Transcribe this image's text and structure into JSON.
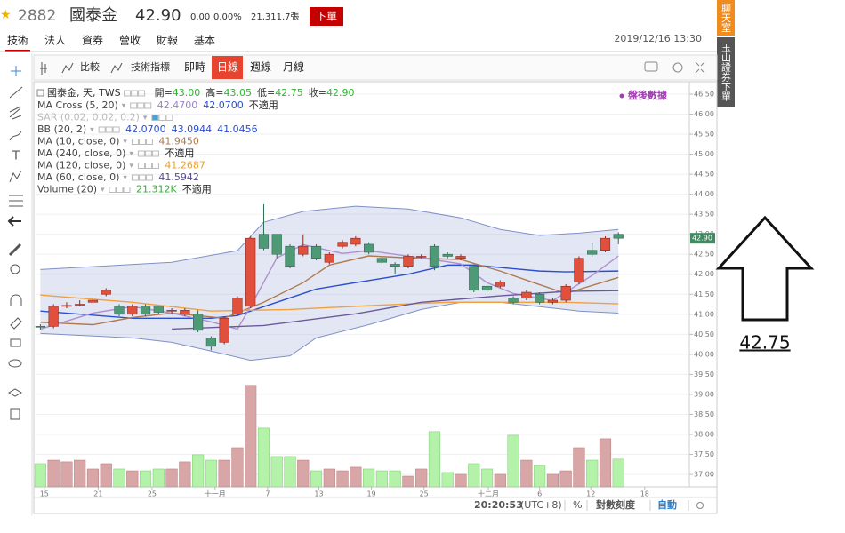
{
  "header": {
    "symbol": "2882",
    "name": "國泰金",
    "price": "42.90",
    "change": "0.00",
    "change_pct": "0.00%",
    "volume": "21,311.7張",
    "order_button": "下單"
  },
  "tabs": [
    "技術",
    "法人",
    "資券",
    "營收",
    "財報",
    "基本"
  ],
  "datetime": "2019/12/16 13:30",
  "side_tabs": [
    "聊天室",
    "玉山證券下單"
  ],
  "toolbar": {
    "compare": "比較",
    "indicators": "技術指標",
    "periods": [
      "即時",
      "日線",
      "週線",
      "月線"
    ],
    "active_period": 1
  },
  "legend": {
    "title": "國泰金, 天, TWS",
    "ohlc": [
      {
        "label": "開=",
        "value": "43.00"
      },
      {
        "label": "高=",
        "value": "43.05"
      },
      {
        "label": "低=",
        "value": "42.75"
      },
      {
        "label": "收=",
        "value": "42.90"
      }
    ]
  },
  "indicators": [
    {
      "label": "MA Cross (5, 20)",
      "values": [
        "42.4700",
        "42.0700",
        "不適用"
      ],
      "colors": [
        "#9a84c4",
        "#2a4fcf",
        "#222"
      ]
    },
    {
      "label": "SAR (0.02, 0.02, 0.2)",
      "values": [],
      "colors": []
    },
    {
      "label": "BB (20, 2)",
      "values": [
        "42.0700",
        "43.0944",
        "41.0456"
      ],
      "colors": [
        "#2a4fcf",
        "#2a4fcf",
        "#2a4fcf"
      ]
    },
    {
      "label": "MA (10, close, 0)",
      "values": [
        "41.9450"
      ],
      "colors": [
        "#b07a50"
      ]
    },
    {
      "label": "MA (240, close, 0)",
      "values": [
        "不適用"
      ],
      "colors": [
        "#222"
      ]
    },
    {
      "label": "MA (120, close, 0)",
      "values": [
        "41.2687"
      ],
      "colors": [
        "#e8a030"
      ]
    },
    {
      "label": "MA (60, close, 0)",
      "values": [
        "41.5942"
      ],
      "colors": [
        "#5a4a8a"
      ]
    },
    {
      "label": "Volume (20)",
      "values": [
        "21.312K",
        "不適用"
      ],
      "colors": [
        "#2db82d",
        "#222"
      ]
    }
  ],
  "after_hours": "盤後數據",
  "status": {
    "time": "20:20:53",
    "tz": "(UTC+8)",
    "percent": "%",
    "log": "對數刻度",
    "auto": "自動"
  },
  "annotation": "42.75",
  "chart_data": {
    "type": "candlestick",
    "open": [
      40.7,
      40.7,
      41.2,
      41.25,
      41.3,
      41.5,
      41.2,
      41.0,
      41.2,
      41.2,
      41.1,
      41.0,
      41.0,
      40.4,
      40.3,
      41.0,
      41.2,
      43.0,
      43.0,
      42.7,
      42.5,
      42.7,
      42.3,
      42.7,
      42.75,
      42.75,
      42.4,
      42.25,
      42.2,
      42.45,
      42.7,
      42.5,
      42.4,
      42.2,
      41.7,
      41.7,
      41.4,
      41.4,
      41.5,
      41.3,
      41.35,
      41.8,
      42.6,
      42.6,
      43.0
    ],
    "high": [
      40.75,
      41.25,
      41.3,
      41.35,
      41.4,
      41.65,
      41.25,
      41.25,
      41.25,
      41.2,
      41.15,
      41.15,
      41.1,
      40.45,
      40.95,
      41.45,
      42.95,
      43.75,
      43.0,
      42.75,
      43.0,
      42.75,
      42.55,
      42.85,
      42.95,
      42.8,
      42.45,
      42.3,
      42.5,
      42.5,
      42.75,
      42.55,
      42.5,
      42.25,
      41.75,
      41.85,
      41.45,
      41.6,
      41.55,
      41.4,
      41.75,
      42.45,
      42.8,
      42.95,
      43.05
    ],
    "low": [
      40.62,
      40.65,
      41.15,
      41.2,
      41.25,
      41.45,
      40.95,
      40.95,
      40.95,
      41.0,
      41.0,
      40.95,
      40.55,
      40.1,
      40.25,
      40.95,
      41.15,
      42.6,
      42.4,
      42.15,
      42.45,
      42.35,
      42.25,
      42.65,
      42.7,
      42.5,
      42.25,
      42.0,
      42.15,
      42.4,
      42.1,
      42.4,
      42.35,
      41.55,
      41.55,
      41.65,
      41.25,
      41.35,
      41.25,
      41.25,
      41.3,
      41.75,
      42.45,
      42.55,
      42.75
    ],
    "close": [
      40.68,
      41.2,
      41.22,
      41.25,
      41.35,
      41.6,
      41.0,
      41.2,
      41.0,
      41.05,
      41.1,
      41.1,
      40.6,
      40.2,
      40.9,
      41.4,
      42.9,
      42.65,
      42.5,
      42.2,
      42.7,
      42.4,
      42.5,
      42.8,
      42.9,
      42.55,
      42.3,
      42.2,
      42.45,
      42.45,
      42.2,
      42.45,
      42.45,
      41.6,
      41.6,
      41.8,
      41.3,
      41.55,
      41.3,
      41.35,
      41.7,
      42.4,
      42.5,
      42.9,
      42.9
    ],
    "volume": [
      17.8,
      20.5,
      19.2,
      20.5,
      13.7,
      17.8,
      13.7,
      12.3,
      12.3,
      13.7,
      13.7,
      19.2,
      24.7,
      20.5,
      20.5,
      30.1,
      78.1,
      45.2,
      23.3,
      23.3,
      20.5,
      12.3,
      13.7,
      12.3,
      15.1,
      13.7,
      12.3,
      12.3,
      8.2,
      13.7,
      42.5,
      11,
      9.6,
      17.8,
      13.7,
      9.6,
      39.7,
      20.5,
      16.4,
      9.6,
      12.3,
      30.1,
      20.5,
      37,
      21.3
    ],
    "up_color": "#e0503c",
    "down_color": "#4f9a76",
    "volume_up_color": "#d9a6a8",
    "volume_down_color": "#b3f2a8",
    "band_color": "#8090c8",
    "series": [
      {
        "color": "#8090c8",
        "x": [
          0,
          4,
          10,
          15,
          17,
          20,
          24,
          28,
          32,
          35,
          38,
          41,
          44
        ],
        "values": [
          42.12,
          42.19,
          42.3,
          42.59,
          43.3,
          43.57,
          43.7,
          43.63,
          43.41,
          43.12,
          42.97,
          43.03,
          43.12
        ]
      },
      {
        "color": "#8090c8",
        "x": [
          0,
          7,
          10,
          13,
          16,
          19,
          21,
          25,
          29,
          32,
          35,
          38,
          41,
          44
        ],
        "values": [
          40.52,
          40.41,
          40.3,
          40.08,
          39.85,
          39.96,
          40.41,
          40.74,
          41.12,
          41.3,
          41.3,
          41.19,
          41.08,
          41.03
        ]
      },
      {
        "color": "#2a4fcf",
        "x": [
          0,
          7,
          13,
          15,
          18,
          21,
          24,
          28,
          31,
          33,
          36,
          38,
          40,
          44
        ],
        "values": [
          41.08,
          40.9,
          40.9,
          40.97,
          41.3,
          41.63,
          41.79,
          42.0,
          42.23,
          42.23,
          42.14,
          42.08,
          42.06,
          42.08
        ]
      },
      {
        "color": "#b07a50",
        "x": [
          0,
          4,
          7,
          10,
          14,
          17,
          20,
          22,
          25,
          28,
          32,
          35,
          38,
          40,
          44
        ],
        "values": [
          40.8,
          40.74,
          40.92,
          41.03,
          40.9,
          41.3,
          41.79,
          42.23,
          42.46,
          42.41,
          42.37,
          42.08,
          41.74,
          41.52,
          41.92
        ]
      },
      {
        "color": "#b090d0",
        "x": [
          0,
          4,
          7,
          10,
          13,
          15,
          16,
          18,
          20,
          23,
          25,
          29,
          32,
          34,
          36,
          39,
          42,
          44
        ],
        "values": [
          40.63,
          41.03,
          41.19,
          41.03,
          40.81,
          40.63,
          41.19,
          42.41,
          42.74,
          42.52,
          42.59,
          42.41,
          42.26,
          41.79,
          41.52,
          41.34,
          41.97,
          42.46
        ]
      },
      {
        "color": "#f0a040",
        "x": [
          0,
          7,
          13,
          19,
          26,
          31,
          35,
          40,
          44
        ],
        "values": [
          41.48,
          41.3,
          41.08,
          41.12,
          41.23,
          41.3,
          41.3,
          41.3,
          41.26
        ]
      },
      {
        "color": "#6a5a9a",
        "x": [
          10,
          17,
          24,
          29,
          35,
          40,
          44
        ],
        "values": [
          40.63,
          40.72,
          41.01,
          41.3,
          41.46,
          41.57,
          41.59
        ]
      }
    ],
    "xlim": [
      -0.5,
      49.4
    ],
    "xticks": [
      {
        "value": 0.3,
        "label": "15"
      },
      {
        "value": 4.4,
        "label": "21"
      },
      {
        "value": 8.5,
        "label": "25"
      },
      {
        "value": 13.3,
        "label": "十一月"
      },
      {
        "value": 17.3,
        "label": "7"
      },
      {
        "value": 21.2,
        "label": "13"
      },
      {
        "value": 25.2,
        "label": "19"
      },
      {
        "value": 29.2,
        "label": "25"
      },
      {
        "value": 34.1,
        "label": "十二月"
      },
      {
        "value": 38,
        "label": "6"
      },
      {
        "value": 41.9,
        "label": "12"
      },
      {
        "value": 46,
        "label": "18"
      }
    ],
    "ylim": [
      36.69,
      46.81
    ],
    "yticks": [
      {
        "value": 46.5,
        "label": "46.50"
      },
      {
        "value": 46,
        "label": "46.00"
      },
      {
        "value": 45.5,
        "label": "45.50"
      },
      {
        "value": 45,
        "label": "45.00"
      },
      {
        "value": 44.5,
        "label": "44.50"
      },
      {
        "value": 44,
        "label": "44.00"
      },
      {
        "value": 43.5,
        "label": "43.50"
      },
      {
        "value": 43,
        "label": "43.00"
      },
      {
        "value": 42.5,
        "label": "42.50"
      },
      {
        "value": 42,
        "label": "42.00"
      },
      {
        "value": 41.5,
        "label": "41.50"
      },
      {
        "value": 41,
        "label": "41.00"
      },
      {
        "value": 40.5,
        "label": "40.50"
      },
      {
        "value": 40,
        "label": "40.00"
      },
      {
        "value": 39.5,
        "label": "39.50"
      },
      {
        "value": 39,
        "label": "39.00"
      },
      {
        "value": 38.5,
        "label": "38.50"
      },
      {
        "value": 38,
        "label": "38.00"
      },
      {
        "value": 37.5,
        "label": "37.50"
      },
      {
        "value": 37,
        "label": "37.00"
      }
    ],
    "vlim": [
      0,
      80
    ],
    "last_price": {
      "value": 42.9,
      "label": "42.90"
    },
    "grid": true
  }
}
